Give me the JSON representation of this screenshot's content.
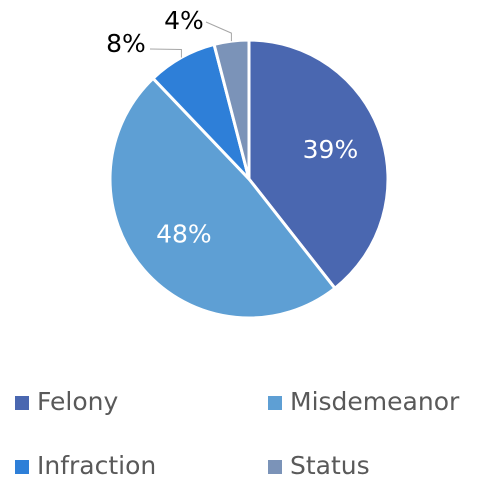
{
  "chart_data": {
    "type": "pie",
    "categories": [
      "Felony",
      "Misdemeanor",
      "Infraction",
      "Status"
    ],
    "values": [
      39,
      48,
      8,
      4
    ],
    "value_labels": [
      "39%",
      "48%",
      "8%",
      "4%"
    ],
    "colors": [
      "#4a67b0",
      "#5e9fd4",
      "#2e7fd8",
      "#7b93b8"
    ],
    "legend": "bottom"
  }
}
